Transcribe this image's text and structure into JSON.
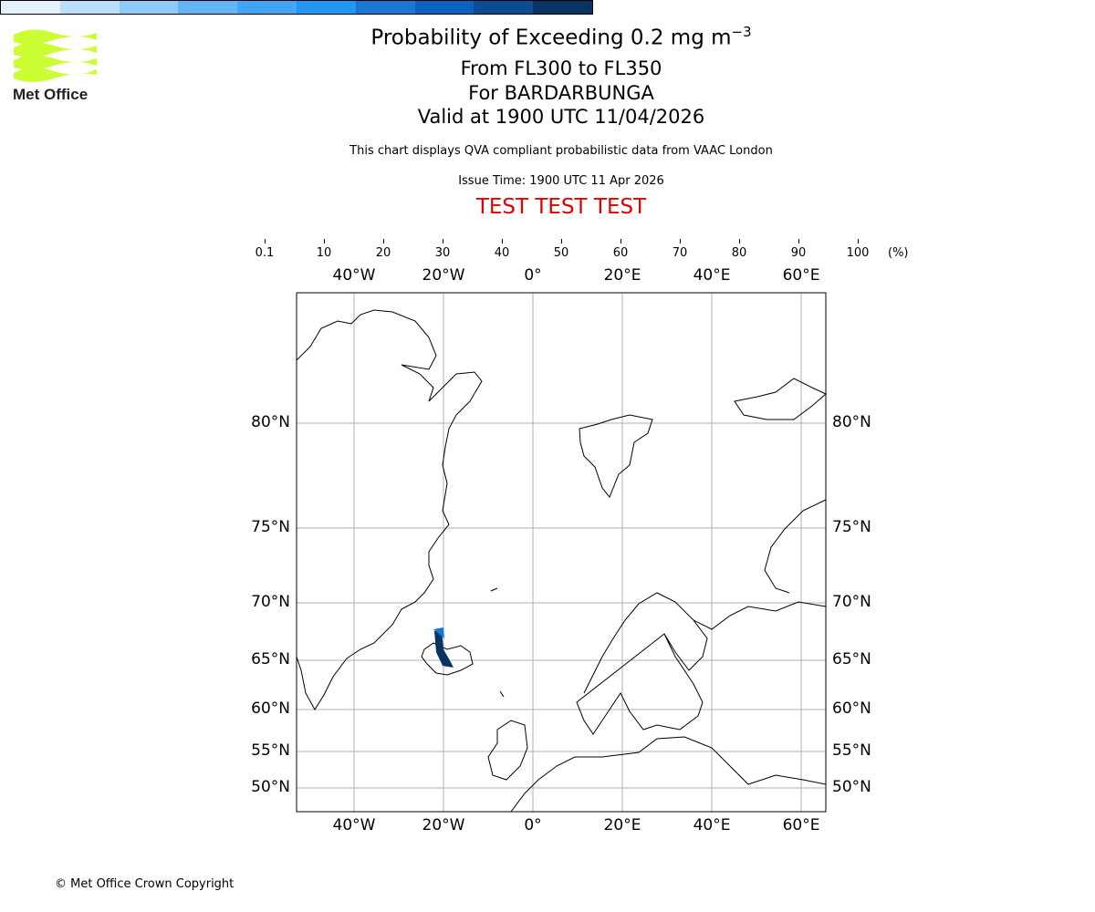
{
  "logo": {
    "text": "Met Office",
    "color": "#ccff33"
  },
  "header": {
    "title": "Probability of Exceeding 0.2 mg m",
    "title_sup": "−3",
    "line2": "From FL300 to FL350",
    "line3": "For BARDARBUNGA",
    "line4": "Valid at 1900 UTC 11/04/2026",
    "qva_note": "This chart displays QVA compliant probabilistic data from VAAC London",
    "issue_time": "Issue Time: 1900 UTC 11 Apr 2026",
    "test_banner": "TEST TEST TEST",
    "test_color": "#e00000"
  },
  "colorbar": {
    "ticks": [
      "0.1",
      "10",
      "20",
      "30",
      "40",
      "50",
      "60",
      "70",
      "80",
      "90",
      "100"
    ],
    "unit": "(%)",
    "colors": [
      "#e3f2fd",
      "#bbdefb",
      "#90caf9",
      "#64b5f6",
      "#42a5f5",
      "#2196f3",
      "#1976d2",
      "#0d64c0",
      "#0a4d93",
      "#083463"
    ]
  },
  "chart_data": {
    "type": "map",
    "lon_ticks": [
      "40°W",
      "20°W",
      "0°",
      "20°E",
      "40°E",
      "60°E"
    ],
    "lat_ticks": [
      "80°N",
      "75°N",
      "70°N",
      "65°N",
      "60°N",
      "55°N",
      "50°N"
    ],
    "volcano": "BARDARBUNGA",
    "plume": {
      "description_level": "90-100",
      "lon_range": [
        -21,
        -18
      ],
      "lat_range": [
        64.5,
        67.5
      ]
    }
  },
  "footer": {
    "copyright": "© Met Office Crown Copyright"
  }
}
